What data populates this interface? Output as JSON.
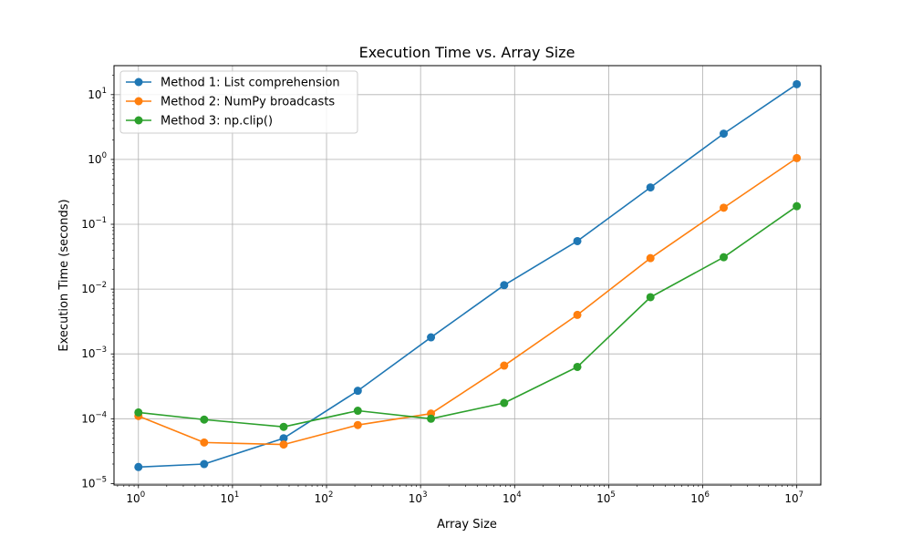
{
  "chart_data": {
    "type": "line",
    "title": "Execution Time vs. Array Size",
    "xlabel": "Array Size",
    "ylabel": "Execution Time (seconds)",
    "xscale": "log",
    "yscale": "log",
    "xlim": [
      0.55,
      18000000
    ],
    "ylim": [
      9.5e-06,
      28
    ],
    "grid": true,
    "legend_position": "top-left",
    "x": [
      1,
      5,
      35,
      215,
      1290,
      7740,
      46400,
      278000,
      1670000,
      10000000
    ],
    "series": [
      {
        "name": "Method 1: List comprehension",
        "color": "#1f77b4",
        "values": [
          1.8e-05,
          2e-05,
          5e-05,
          0.00027,
          0.0018,
          0.0115,
          0.055,
          0.37,
          2.5,
          14.5
        ]
      },
      {
        "name": "Method 2: NumPy broadcasts",
        "color": "#ff7f0e",
        "values": [
          0.00011,
          4.3e-05,
          4e-05,
          8e-05,
          0.00012,
          0.00066,
          0.004,
          0.03,
          0.18,
          1.05
        ]
      },
      {
        "name": "Method 3: np.clip()",
        "color": "#2ca02c",
        "values": [
          0.000125,
          9.7e-05,
          7.5e-05,
          0.000133,
          0.0001,
          0.000175,
          0.00063,
          0.0075,
          0.031,
          0.19
        ]
      }
    ],
    "x_ticks": [
      {
        "base": "10",
        "exp": "0"
      },
      {
        "base": "10",
        "exp": "1"
      },
      {
        "base": "10",
        "exp": "2"
      },
      {
        "base": "10",
        "exp": "3"
      },
      {
        "base": "10",
        "exp": "4"
      },
      {
        "base": "10",
        "exp": "5"
      },
      {
        "base": "10",
        "exp": "6"
      },
      {
        "base": "10",
        "exp": "7"
      }
    ],
    "y_ticks": [
      {
        "base": "10",
        "exp": "−5"
      },
      {
        "base": "10",
        "exp": "−4"
      },
      {
        "base": "10",
        "exp": "−3"
      },
      {
        "base": "10",
        "exp": "−2"
      },
      {
        "base": "10",
        "exp": "−1"
      },
      {
        "base": "10",
        "exp": "0"
      },
      {
        "base": "10",
        "exp": "1"
      }
    ]
  }
}
